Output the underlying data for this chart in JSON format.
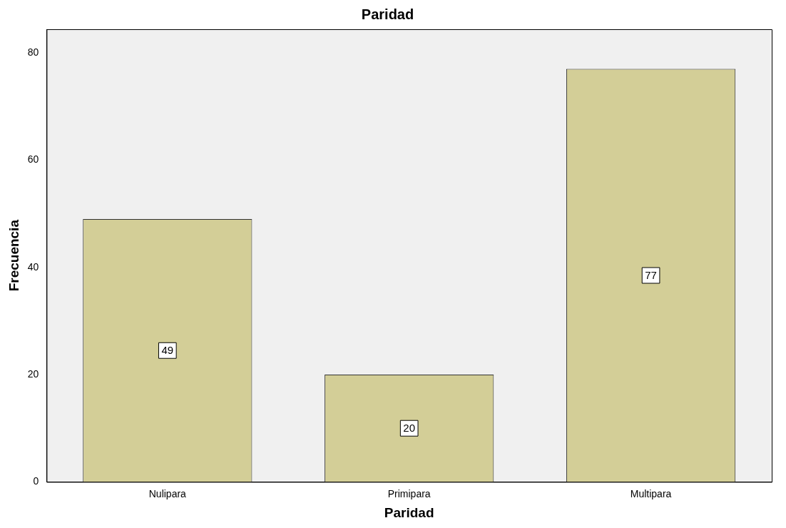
{
  "chart_data": {
    "type": "bar",
    "title": "Paridad",
    "xlabel": "Paridad",
    "ylabel": "Frecuencia",
    "categories": [
      "Nulipara",
      "Primipara",
      "Multipara"
    ],
    "values": [
      49,
      20,
      77
    ],
    "color": "#d3ce97",
    "ylim": [
      0,
      84.4
    ],
    "yticks": [
      0,
      20,
      40,
      60,
      80
    ],
    "grid": false,
    "legend": false,
    "data_labels": true
  }
}
